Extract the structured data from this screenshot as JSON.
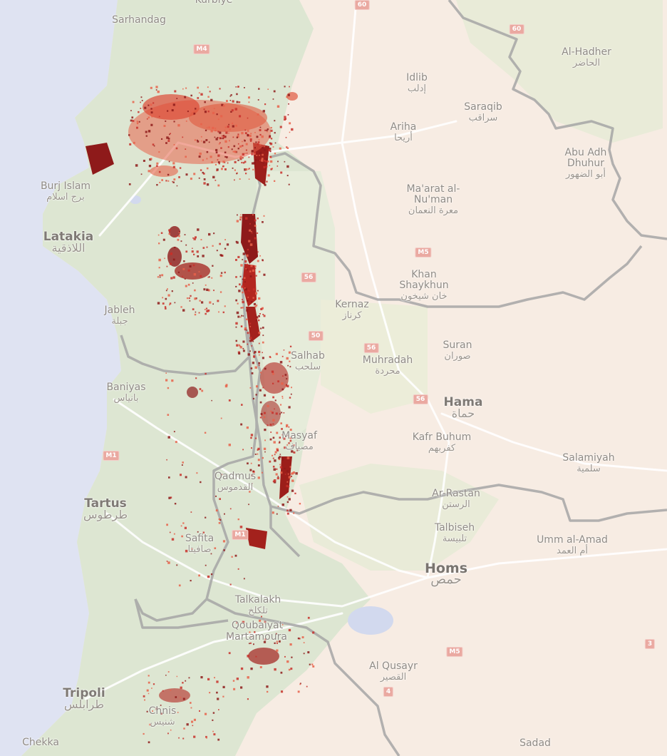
{
  "map": {
    "colors": {
      "sea": "#dfe3f2",
      "land": "#f7ece3",
      "vegetation": "#dfe7d4",
      "border": "#a3a3a3",
      "road": "#ffffff",
      "lake": "#cfd6ee",
      "burn_dark": "#8e1a1a",
      "burn_mid": "#c8302a",
      "burn_light": "#e8624a"
    },
    "labels": [
      {
        "name": "Sarhandag",
        "ar": ""
      },
      {
        "name": "Kurbiye",
        "ar": ""
      },
      {
        "name": "Idlib",
        "ar": "إدلب"
      },
      {
        "name": "Saraqib",
        "ar": "سراقب"
      },
      {
        "name": "Al-Hadher",
        "ar": "الحاضر"
      },
      {
        "name": "Ariha",
        "ar": "أريحا"
      },
      {
        "name": "Abu Adh Dhuhur",
        "ar": "أبو الضهور"
      },
      {
        "name": "Ma'arat al-Nu'man",
        "ar": "معرة النعمان"
      },
      {
        "name": "Burj Islam",
        "ar": "برج اسلام"
      },
      {
        "name": "Latakia",
        "ar": "اللاذقية"
      },
      {
        "name": "Khan Shaykhun",
        "ar": "خان شيخون"
      },
      {
        "name": "Jableh",
        "ar": "جبلة"
      },
      {
        "name": "Kernaz",
        "ar": "كرناز"
      },
      {
        "name": "Suran",
        "ar": "صوران"
      },
      {
        "name": "Salhab",
        "ar": "سلحب"
      },
      {
        "name": "Muhradah",
        "ar": "محردة"
      },
      {
        "name": "Baniyas",
        "ar": "بانياس"
      },
      {
        "name": "Hama",
        "ar": "حماة"
      },
      {
        "name": "Masyaf",
        "ar": "مصياف"
      },
      {
        "name": "Kafr Buhum",
        "ar": "كفربهم"
      },
      {
        "name": "Salamiyah",
        "ar": "سلمية"
      },
      {
        "name": "Qadmus",
        "ar": "القدموس"
      },
      {
        "name": "Tartus",
        "ar": "طرطوس"
      },
      {
        "name": "Ar-Rastan",
        "ar": "الرستن"
      },
      {
        "name": "Safita",
        "ar": "صافيتا"
      },
      {
        "name": "Talbiseh",
        "ar": "تلبيسة"
      },
      {
        "name": "Umm al-Amad",
        "ar": "أم العمد"
      },
      {
        "name": "Homs",
        "ar": "حمص"
      },
      {
        "name": "Talkalakh",
        "ar": "تلكلخ"
      },
      {
        "name": "Qoubaiyat",
        "ar": ""
      },
      {
        "name": "Martamoura",
        "ar": ""
      },
      {
        "name": "Al Qusayr",
        "ar": "القصير"
      },
      {
        "name": "Tripoli",
        "ar": "طرابلس"
      },
      {
        "name": "Chnis",
        "ar": "شنيس"
      },
      {
        "name": "Chekka",
        "ar": ""
      },
      {
        "name": "Sadad",
        "ar": ""
      }
    ],
    "shields": [
      "60",
      "60",
      "M4",
      "56",
      "M5",
      "50",
      "56",
      "56",
      "M1",
      "M1",
      "M5",
      "4",
      "3",
      "M5"
    ]
  }
}
